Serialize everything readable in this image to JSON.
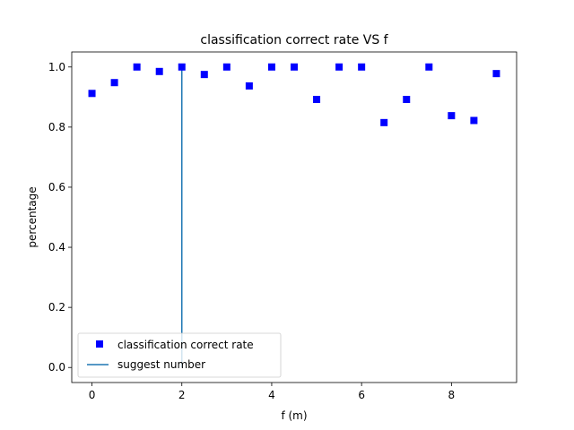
{
  "chart_data": {
    "type": "scatter",
    "title": "classification correct rate VS f",
    "xlabel": "f (m)",
    "ylabel": "percentage",
    "xlim": [
      -0.45,
      9.45
    ],
    "ylim": [
      -0.05,
      1.05
    ],
    "xticks": [
      0,
      2,
      4,
      6,
      8
    ],
    "xtick_labels": [
      "0",
      "2",
      "4",
      "6",
      "8"
    ],
    "yticks": [
      0.0,
      0.2,
      0.4,
      0.6,
      0.8,
      1.0
    ],
    "ytick_labels": [
      "0.0",
      "0.2",
      "0.4",
      "0.6",
      "0.8",
      "1.0"
    ],
    "grid": false,
    "legend_position": "lower-left",
    "series": [
      {
        "name": "classification correct rate",
        "marker": "square",
        "color": "#0000ff",
        "x": [
          0,
          0.5,
          1,
          1.5,
          2,
          2.5,
          3,
          3.5,
          4,
          4.5,
          5,
          5.5,
          6,
          6.5,
          7,
          7.5,
          8,
          8.5,
          9
        ],
        "y": [
          0.912,
          0.948,
          1.0,
          0.985,
          1.0,
          0.975,
          1.0,
          0.937,
          1.0,
          1.0,
          0.892,
          1.0,
          1.0,
          0.815,
          0.892,
          1.0,
          0.838,
          0.822,
          0.978
        ]
      },
      {
        "name": "suggest number",
        "type": "vline",
        "color": "#1f77b4",
        "x": 2,
        "y": [
          0.0,
          1.0
        ]
      }
    ]
  }
}
